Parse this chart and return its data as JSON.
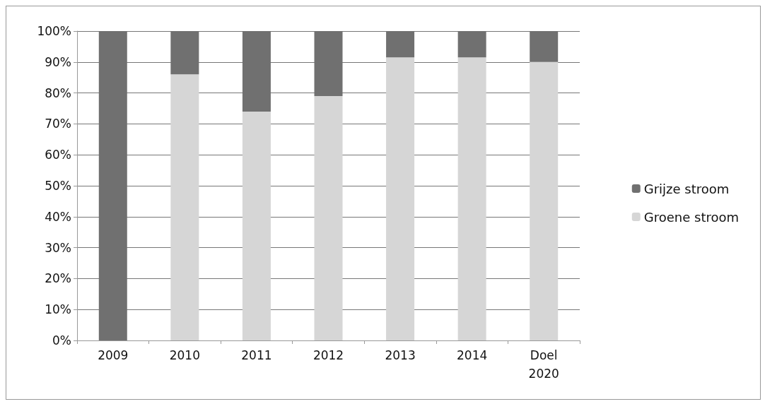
{
  "chart_data": {
    "type": "bar",
    "stacked": true,
    "categories": [
      "2009",
      "2010",
      "2011",
      "2012",
      "2013",
      "2014",
      "Doel\n2020"
    ],
    "series": [
      {
        "name": "Groene stroom",
        "color": "#d6d6d6",
        "values": [
          0,
          86,
          74,
          79,
          91.5,
          91.5,
          90
        ]
      },
      {
        "name": "Grijze stroom",
        "color": "#707070",
        "values": [
          100,
          14,
          26,
          21,
          8.5,
          8.5,
          10
        ]
      }
    ],
    "ylim": [
      0,
      100
    ],
    "yticks": [
      {
        "value": 0,
        "label": "0%"
      },
      {
        "value": 10,
        "label": "10%"
      },
      {
        "value": 20,
        "label": "20%"
      },
      {
        "value": 30,
        "label": "30%"
      },
      {
        "value": 40,
        "label": "40%"
      },
      {
        "value": 50,
        "label": "50%"
      },
      {
        "value": 60,
        "label": "60%"
      },
      {
        "value": 70,
        "label": "70%"
      },
      {
        "value": 80,
        "label": "80%"
      },
      {
        "value": 90,
        "label": "90%"
      },
      {
        "value": 100,
        "label": "100%"
      }
    ],
    "grid": "y",
    "legend": "right"
  }
}
